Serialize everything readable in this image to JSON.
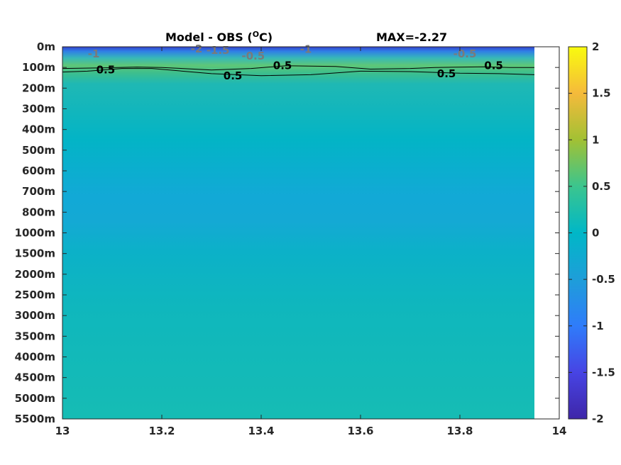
{
  "chart_data": {
    "type": "heatmap",
    "title": "Model - OBS (",
    "title_unit_sup": "O",
    "title_unit_tail": "C)",
    "max_label": "MAX=-2.27",
    "x": {
      "range": [
        13,
        14
      ],
      "ticks": [
        13,
        13.2,
        13.4,
        13.6,
        13.8,
        14
      ],
      "tick_labels": [
        "13",
        "13.2",
        "13.4",
        "13.6",
        "13.8",
        "14"
      ],
      "data_extent": [
        13,
        13.95
      ]
    },
    "y": {
      "tick_labels": [
        "0m",
        "100m",
        "200m",
        "300m",
        "400m",
        "500m",
        "600m",
        "700m",
        "800m",
        "1000m",
        "1500m",
        "2000m",
        "2500m",
        "3000m",
        "3500m",
        "4000m",
        "4500m",
        "5000m",
        "5500m"
      ]
    },
    "colorbar": {
      "range": [
        -2,
        2
      ],
      "ticks": [
        2,
        1.5,
        1,
        0.5,
        0,
        -0.5,
        -1,
        -1.5,
        -2
      ],
      "tick_labels": [
        "2",
        "1.5",
        "1",
        "0.5",
        "0",
        "-0.5",
        "-1",
        "-1.5",
        "-2"
      ],
      "colormap": "parula"
    },
    "contour_labels": [
      {
        "text": "0.5",
        "x": 13.087,
        "depth_index": 1.12,
        "color": "black"
      },
      {
        "text": "0.5",
        "x": 13.343,
        "depth_index": 1.4,
        "color": "black"
      },
      {
        "text": "0.5",
        "x": 13.443,
        "depth_index": 0.9,
        "color": "black"
      },
      {
        "text": "0.5",
        "x": 13.773,
        "depth_index": 1.3,
        "color": "black"
      },
      {
        "text": "0.5",
        "x": 13.868,
        "depth_index": 0.9,
        "color": "black"
      },
      {
        "text": "-1",
        "x": 13.063,
        "depth_index": 0.35,
        "color": "grey"
      },
      {
        "text": "-2",
        "x": 13.27,
        "depth_index": 0.1,
        "color": "grey"
      },
      {
        "text": "-1.5",
        "x": 13.313,
        "depth_index": 0.17,
        "color": "grey"
      },
      {
        "text": "-0.5",
        "x": 13.384,
        "depth_index": 0.45,
        "color": "grey"
      },
      {
        "text": "-1",
        "x": 13.49,
        "depth_index": 0.12,
        "color": "grey"
      },
      {
        "text": "-0.5",
        "x": 13.81,
        "depth_index": 0.35,
        "color": "grey"
      }
    ]
  }
}
